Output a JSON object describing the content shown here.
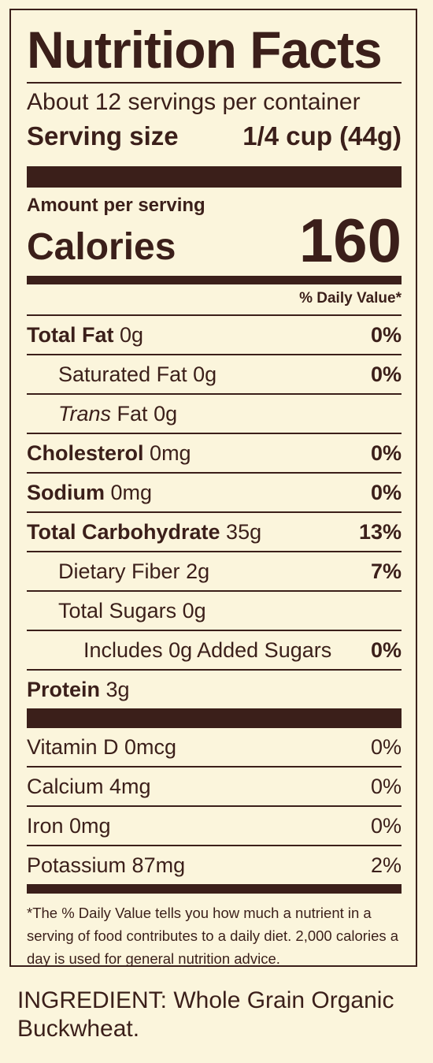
{
  "label": {
    "title": "Nutrition Facts",
    "servings_per_container": "About 12 servings per container",
    "serving_size_label": "Serving size",
    "serving_size_value": "1/4 cup (44g)",
    "amount_per_serving": "Amount per serving",
    "calories_label": "Calories",
    "calories_value": "160",
    "daily_value_header": "% Daily Value*",
    "nutrients": [
      {
        "name": "Total Fat",
        "amount": "0g",
        "dv": "0%"
      },
      {
        "name": "Saturated Fat",
        "amount": "0g",
        "dv": "0%"
      },
      {
        "name": "Trans",
        "name_suffix": "Fat",
        "amount": "0g"
      },
      {
        "name": "Cholesterol",
        "amount": "0mg",
        "dv": "0%"
      },
      {
        "name": "Sodium",
        "amount": "0mg",
        "dv": "0%"
      },
      {
        "name": "Total Carbohydrate",
        "amount": "35g",
        "dv": "13%"
      },
      {
        "name": "Dietary Fiber",
        "amount": "2g",
        "dv": "7%"
      },
      {
        "name": "Total Sugars",
        "amount": "0g"
      },
      {
        "name": "Includes 0g Added Sugars",
        "dv": "0%"
      },
      {
        "name": "Protein",
        "amount": "3g"
      }
    ],
    "vitamins": [
      {
        "text": "Vitamin D 0mcg",
        "dv": "0%"
      },
      {
        "text": "Calcium 4mg",
        "dv": "0%"
      },
      {
        "text": "Iron 0mg",
        "dv": "0%"
      },
      {
        "text": "Potassium 87mg",
        "dv": "2%"
      }
    ],
    "footnote": "*The % Daily Value tells you how much a nutrient in a serving of food contributes to a daily diet. 2,000 calories a day is used for general nutrition advice."
  },
  "ingredients": "INGREDIENT: Whole Grain Organic Buckwheat.",
  "colors": {
    "ink": "#3b1f1a",
    "background": "#fbf5dc"
  }
}
